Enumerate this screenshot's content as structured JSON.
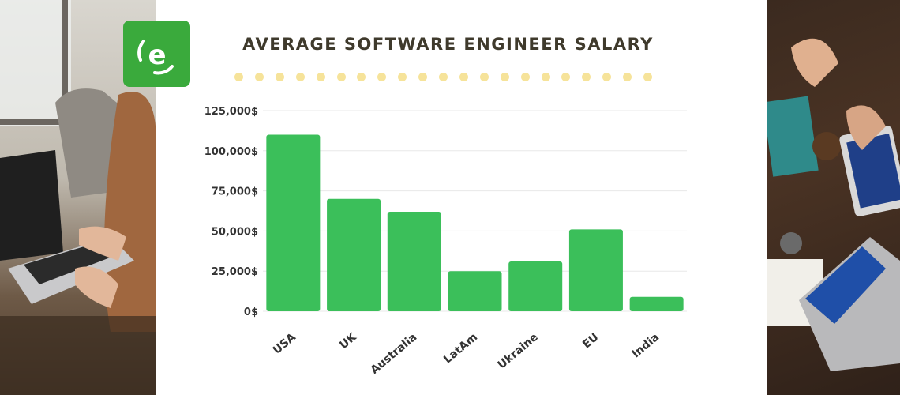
{
  "title": "AVERAGE SOFTWARE ENGINEER SALARY",
  "logo": {
    "letter": "e"
  },
  "colors": {
    "bar": "#3bbf5a",
    "title": "#3f3a2c",
    "dots": "#f6e39a",
    "logo": "#3aaa3c",
    "grid": "#e8e8e8"
  },
  "chart_data": {
    "type": "bar",
    "title": "AVERAGE SOFTWARE ENGINEER SALARY",
    "categories": [
      "USA",
      "UK",
      "Australia",
      "LatAm",
      "Ukraine",
      "EU",
      "India"
    ],
    "values": [
      110000,
      70000,
      62000,
      25000,
      31000,
      51000,
      9000
    ],
    "yticks": [
      "0$",
      "25,000$",
      "50,000$",
      "75,000$",
      "100,000$",
      "125,000$"
    ],
    "ytick_values": [
      0,
      25000,
      50000,
      75000,
      100000,
      125000
    ],
    "ylim": [
      0,
      125000
    ],
    "xlabel": "",
    "ylabel": "",
    "grid": true,
    "legend": "none"
  }
}
